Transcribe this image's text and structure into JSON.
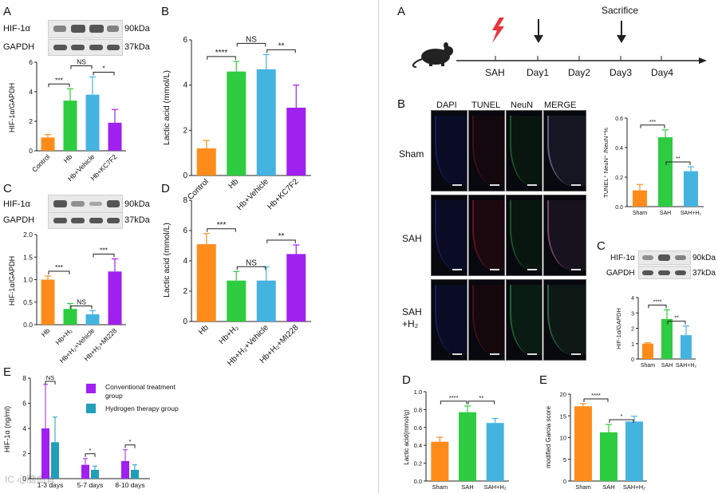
{
  "colors": {
    "orange": "#ff8c1a",
    "green": "#2ecc40",
    "blue": "#45b3e0",
    "purple": "#a020f0",
    "teal": "#1f9fb8",
    "bolt": "#e8343a"
  },
  "panel_letters": {
    "l_a": "A",
    "l_b": "B",
    "l_c": "C",
    "l_d": "D",
    "l_e": "E",
    "r_a": "A",
    "r_b": "B",
    "r_c": "C",
    "r_d": "D",
    "r_e": "E"
  },
  "blots": {
    "l_a": {
      "top_label": "HIF-1α",
      "top_kda": "90kDa",
      "bottom_label": "GAPDH",
      "bottom_kda": "37kDa"
    },
    "l_c": {
      "top_label": "HIF-1α",
      "top_kda": "90kDa",
      "bottom_label": "GAPDH",
      "bottom_kda": "37kDa"
    },
    "r_c": {
      "top_label": "HIF-1α",
      "top_kda": "90kDa",
      "bottom_label": "GAPDH",
      "bottom_kda": "37kDa"
    }
  },
  "timeline": {
    "events": [
      "SAH",
      "Day1",
      "Day2",
      "Day3",
      "Day4"
    ],
    "sacrifice": "Sacrifice"
  },
  "microscopy": {
    "channels": [
      "DAPI",
      "TUNEL",
      "NeuN",
      "MERGE"
    ],
    "rows": [
      "Sham",
      "SAH",
      "SAH",
      "+H₂"
    ]
  },
  "legend_e": {
    "items": [
      "Conventional treatment",
      "group",
      "Hydrogen therapy group"
    ]
  },
  "watermark": "IC 心脑血管",
  "chart_data": [
    {
      "id": "l_a",
      "type": "bar",
      "title": "",
      "xlabel": "",
      "ylabel": "HIF-1α/GAPDH",
      "ylim": [
        0,
        6
      ],
      "yticks": [
        "0",
        "2",
        "4",
        "6"
      ],
      "categories": [
        "Control",
        "Hb",
        "Hb+Vehicle",
        "Hb+KC7F2"
      ],
      "values": [
        0.9,
        3.4,
        3.8,
        1.9
      ],
      "errors": [
        0.2,
        0.8,
        1.2,
        0.9
      ],
      "bar_colors": [
        "orange",
        "green",
        "blue",
        "purple"
      ],
      "annotations": [
        {
          "a": 0,
          "b": 1,
          "label": "***",
          "level": 0
        },
        {
          "a": 1,
          "b": 2,
          "label": "NS",
          "level": 1
        },
        {
          "a": 2,
          "b": 3,
          "label": "*",
          "level": 0
        }
      ]
    },
    {
      "id": "l_b",
      "type": "bar",
      "title": "",
      "xlabel": "",
      "ylabel": "Lactic acid (mmol/L)",
      "ylim": [
        0,
        6
      ],
      "yticks": [
        "0",
        "2",
        "4",
        "6"
      ],
      "categories": [
        "Control",
        "Hb",
        "Hb+Vehicle",
        "Hb+KC7F2"
      ],
      "values": [
        1.2,
        4.6,
        4.7,
        3.0
      ],
      "errors": [
        0.35,
        0.45,
        0.65,
        1.0
      ],
      "bar_colors": [
        "orange",
        "green",
        "blue",
        "purple"
      ],
      "annotations": [
        {
          "a": 0,
          "b": 1,
          "label": "****",
          "level": 0
        },
        {
          "a": 1,
          "b": 2,
          "label": "NS",
          "level": 1
        },
        {
          "a": 2,
          "b": 3,
          "label": "**",
          "level": 0
        }
      ]
    },
    {
      "id": "l_c",
      "type": "bar",
      "title": "",
      "xlabel": "",
      "ylabel": "HIF-1α/GAPDH",
      "ylim": [
        0,
        2.0
      ],
      "yticks": [
        "0.0",
        "0.5",
        "1.0",
        "1.5",
        "2.0"
      ],
      "categories": [
        "Hb",
        "Hb+H₂",
        "Hb+H₂+Vehicle",
        "Hb+H₂+MI228"
      ],
      "values": [
        1.0,
        0.35,
        0.23,
        1.18
      ],
      "errors": [
        0.08,
        0.12,
        0.08,
        0.28
      ],
      "bar_colors": [
        "orange",
        "green",
        "blue",
        "purple"
      ],
      "annotations": [
        {
          "a": 0,
          "b": 1,
          "label": "***",
          "level": 0
        },
        {
          "a": 1,
          "b": 2,
          "label": "NS",
          "level": -1
        },
        {
          "a": 2,
          "b": 3,
          "label": "***",
          "level": 0
        }
      ]
    },
    {
      "id": "l_d",
      "type": "bar",
      "title": "",
      "xlabel": "",
      "ylabel": "Lactic acid (mmol/L)",
      "ylim": [
        0,
        8
      ],
      "yticks": [
        "0",
        "2",
        "4",
        "6",
        "8"
      ],
      "categories": [
        "Hb",
        "Hb+H₂",
        "Hb+H₂+Vehicle",
        "Hb+H₂+MI228"
      ],
      "values": [
        5.1,
        2.7,
        2.7,
        4.45
      ],
      "errors": [
        0.7,
        0.6,
        0.9,
        0.6
      ],
      "bar_colors": [
        "orange",
        "green",
        "blue",
        "purple"
      ],
      "annotations": [
        {
          "a": 0,
          "b": 1,
          "label": "***",
          "level": 0
        },
        {
          "a": 1,
          "b": 2,
          "label": "NS",
          "level": -1
        },
        {
          "a": 2,
          "b": 3,
          "label": "**",
          "level": 0
        }
      ]
    },
    {
      "id": "l_e",
      "type": "bar",
      "title": "",
      "xlabel": "",
      "ylabel": "HIF-1α (ng/ml)",
      "ylim": [
        0,
        8
      ],
      "yticks": [
        "0",
        "2",
        "4",
        "6",
        "8"
      ],
      "categories": [
        "1-3 days",
        "5-7 days",
        "8-10 days"
      ],
      "series": [
        {
          "name": "Conventional treatment group",
          "values": [
            4.0,
            1.1,
            1.4
          ],
          "errors": [
            3.5,
            0.5,
            0.9
          ],
          "color": "purple"
        },
        {
          "name": "Hydrogen therapy group",
          "values": [
            2.9,
            0.7,
            0.7
          ],
          "errors": [
            2.0,
            0.3,
            0.4
          ],
          "color": "teal"
        }
      ],
      "annotations": [
        {
          "group": 0,
          "label": "NS"
        },
        {
          "group": 1,
          "label": "*"
        },
        {
          "group": 2,
          "label": "*"
        }
      ]
    },
    {
      "id": "r_b",
      "type": "bar",
      "title": "",
      "xlabel": "",
      "ylabel": "TUNEL⁺ NeuN⁺ /NeuN⁺%",
      "ylim": [
        0,
        0.6
      ],
      "yticks": [
        "0.0",
        "0.2",
        "0.4",
        "0.6"
      ],
      "categories": [
        "Sham",
        "SAH",
        "SAH+H₂"
      ],
      "values": [
        0.11,
        0.47,
        0.24
      ],
      "errors": [
        0.04,
        0.05,
        0.03
      ],
      "bar_colors": [
        "orange",
        "green",
        "blue"
      ],
      "annotations": [
        {
          "a": 0,
          "b": 1,
          "label": "***",
          "level": 0
        },
        {
          "a": 1,
          "b": 2,
          "label": "**",
          "level": -1
        }
      ]
    },
    {
      "id": "r_c",
      "type": "bar",
      "title": "",
      "xlabel": "",
      "ylabel": "HIF-1α/GAPDH",
      "ylim": [
        0,
        4
      ],
      "yticks": [
        "0",
        "1",
        "2",
        "3",
        "4"
      ],
      "categories": [
        "Sham",
        "SAH",
        "SAH+H₂"
      ],
      "values": [
        1.0,
        2.6,
        1.55
      ],
      "errors": [
        0.05,
        0.6,
        0.6
      ],
      "bar_colors": [
        "orange",
        "green",
        "blue"
      ],
      "annotations": [
        {
          "a": 0,
          "b": 1,
          "label": "****",
          "level": 0
        },
        {
          "a": 1,
          "b": 2,
          "label": "**",
          "level": -1
        }
      ]
    },
    {
      "id": "r_d",
      "type": "bar",
      "title": "",
      "xlabel": "",
      "ylabel": "Lactic acid(mmol/g)",
      "ylim": [
        0,
        1.0
      ],
      "yticks": [
        "0.0",
        "0.2",
        "0.4",
        "0.6",
        "0.8",
        "1.0"
      ],
      "categories": [
        "Sham",
        "SAH",
        "SAH+H₂"
      ],
      "values": [
        0.44,
        0.77,
        0.65
      ],
      "errors": [
        0.05,
        0.07,
        0.05
      ],
      "bar_colors": [
        "orange",
        "green",
        "blue"
      ],
      "annotations": [
        {
          "a": 0,
          "b": 1,
          "label": "****",
          "level": 0
        },
        {
          "a": 1,
          "b": 2,
          "label": "**",
          "level": 0
        }
      ]
    },
    {
      "id": "r_e",
      "type": "bar",
      "title": "",
      "xlabel": "",
      "ylabel": "modified Garcia score",
      "ylim": [
        0,
        20
      ],
      "yticks": [
        "0",
        "5",
        "10",
        "15",
        "20"
      ],
      "categories": [
        "Sham",
        "SAH",
        "SAH+H₂"
      ],
      "values": [
        17.2,
        11.2,
        13.7
      ],
      "errors": [
        0.6,
        1.8,
        1.2
      ],
      "bar_colors": [
        "orange",
        "green",
        "blue"
      ],
      "annotations": [
        {
          "a": 0,
          "b": 1,
          "label": "****",
          "level": 0
        },
        {
          "a": 1,
          "b": 2,
          "label": "*",
          "level": -1
        }
      ]
    }
  ]
}
